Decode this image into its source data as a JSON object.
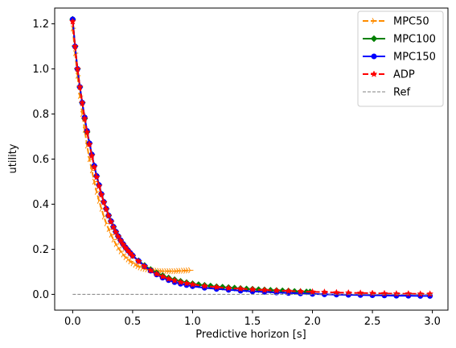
{
  "chart_data": {
    "type": "line",
    "title": "",
    "xlabel": "Predictive horizon [s]",
    "ylabel": "utility",
    "xlim": [
      -0.15,
      3.13
    ],
    "ylim": [
      -0.07,
      1.27
    ],
    "xticks": [
      0.0,
      0.5,
      1.0,
      1.5,
      2.0,
      2.5,
      3.0
    ],
    "xtick_labels": [
      "0.0",
      "0.5",
      "1.0",
      "1.5",
      "2.0",
      "2.5",
      "3.0"
    ],
    "yticks": [
      0.0,
      0.2,
      0.4,
      0.6,
      0.8,
      1.0,
      1.2
    ],
    "ytick_labels": [
      "0.0",
      "0.2",
      "0.4",
      "0.6",
      "0.8",
      "1.0",
      "1.2"
    ],
    "grid": false,
    "legend": "top-right",
    "series": [
      {
        "name": "MPC50",
        "color": "#ff8c00",
        "style": "dashed",
        "marker": "tri-right",
        "x": [
          0.0,
          0.02,
          0.04,
          0.06,
          0.08,
          0.1,
          0.12,
          0.14,
          0.16,
          0.18,
          0.2,
          0.22,
          0.24,
          0.26,
          0.28,
          0.3,
          0.32,
          0.34,
          0.36,
          0.38,
          0.4,
          0.42,
          0.44,
          0.46,
          0.48,
          0.5,
          0.52,
          0.54,
          0.56,
          0.58,
          0.6,
          0.62,
          0.64,
          0.66,
          0.68,
          0.7,
          0.72,
          0.74,
          0.76,
          0.78,
          0.8,
          0.82,
          0.84,
          0.86,
          0.88,
          0.9,
          0.92,
          0.94,
          0.96,
          0.98
        ],
        "y": [
          1.18,
          1.07,
          0.97,
          0.88,
          0.8,
          0.73,
          0.66,
          0.6,
          0.55,
          0.5,
          0.455,
          0.415,
          0.38,
          0.345,
          0.315,
          0.29,
          0.265,
          0.243,
          0.223,
          0.206,
          0.191,
          0.177,
          0.165,
          0.155,
          0.146,
          0.138,
          0.131,
          0.125,
          0.12,
          0.116,
          0.113,
          0.111,
          0.109,
          0.107,
          0.106,
          0.105,
          0.104,
          0.103,
          0.103,
          0.103,
          0.103,
          0.103,
          0.103,
          0.103,
          0.104,
          0.104,
          0.105,
          0.105,
          0.106,
          0.107
        ]
      },
      {
        "name": "MPC100",
        "color": "#008000",
        "style": "solid",
        "marker": "diamond",
        "x": [
          0.0,
          0.02,
          0.04,
          0.06,
          0.08,
          0.1,
          0.12,
          0.14,
          0.16,
          0.18,
          0.2,
          0.22,
          0.24,
          0.26,
          0.28,
          0.3,
          0.32,
          0.34,
          0.36,
          0.38,
          0.4,
          0.42,
          0.44,
          0.46,
          0.48,
          0.5,
          0.55,
          0.6,
          0.65,
          0.7,
          0.75,
          0.8,
          0.85,
          0.9,
          0.95,
          1.0,
          1.05,
          1.1,
          1.15,
          1.2,
          1.25,
          1.3,
          1.35,
          1.4,
          1.45,
          1.5,
          1.55,
          1.6,
          1.65,
          1.7,
          1.75,
          1.8,
          1.85,
          1.9,
          1.95,
          1.98
        ],
        "y": [
          1.22,
          1.1,
          1.0,
          0.92,
          0.85,
          0.78,
          0.72,
          0.67,
          0.62,
          0.57,
          0.525,
          0.485,
          0.445,
          0.41,
          0.38,
          0.35,
          0.325,
          0.3,
          0.278,
          0.258,
          0.24,
          0.224,
          0.209,
          0.196,
          0.184,
          0.172,
          0.149,
          0.128,
          0.11,
          0.095,
          0.083,
          0.073,
          0.065,
          0.058,
          0.052,
          0.047,
          0.043,
          0.04,
          0.037,
          0.034,
          0.032,
          0.03,
          0.028,
          0.026,
          0.024,
          0.023,
          0.021,
          0.02,
          0.018,
          0.017,
          0.016,
          0.015,
          0.013,
          0.012,
          0.011,
          0.011
        ]
      },
      {
        "name": "MPC150",
        "color": "#0000ff",
        "style": "solid",
        "marker": "circle",
        "x": [
          0.0,
          0.02,
          0.04,
          0.06,
          0.08,
          0.1,
          0.12,
          0.14,
          0.16,
          0.18,
          0.2,
          0.22,
          0.24,
          0.26,
          0.28,
          0.3,
          0.32,
          0.34,
          0.36,
          0.38,
          0.4,
          0.42,
          0.44,
          0.46,
          0.48,
          0.5,
          0.55,
          0.6,
          0.65,
          0.7,
          0.75,
          0.8,
          0.85,
          0.9,
          0.95,
          1.0,
          1.1,
          1.2,
          1.3,
          1.4,
          1.5,
          1.6,
          1.7,
          1.8,
          1.9,
          2.0,
          2.1,
          2.2,
          2.3,
          2.4,
          2.5,
          2.6,
          2.7,
          2.8,
          2.9,
          2.98
        ],
        "y": [
          1.22,
          1.1,
          1.0,
          0.92,
          0.85,
          0.785,
          0.725,
          0.67,
          0.62,
          0.57,
          0.525,
          0.485,
          0.445,
          0.41,
          0.38,
          0.35,
          0.325,
          0.3,
          0.278,
          0.258,
          0.24,
          0.224,
          0.209,
          0.196,
          0.184,
          0.172,
          0.148,
          0.125,
          0.105,
          0.088,
          0.074,
          0.063,
          0.054,
          0.047,
          0.041,
          0.036,
          0.029,
          0.024,
          0.02,
          0.016,
          0.013,
          0.011,
          0.008,
          0.006,
          0.004,
          0.002,
          0.0,
          -0.001,
          -0.002,
          -0.003,
          -0.004,
          -0.005,
          -0.006,
          -0.006,
          -0.007,
          -0.007
        ]
      },
      {
        "name": "ADP",
        "color": "#ff0000",
        "style": "dashed",
        "marker": "star",
        "x": [
          0.0,
          0.02,
          0.04,
          0.06,
          0.08,
          0.1,
          0.12,
          0.14,
          0.16,
          0.18,
          0.2,
          0.22,
          0.24,
          0.26,
          0.28,
          0.3,
          0.32,
          0.34,
          0.36,
          0.38,
          0.4,
          0.42,
          0.44,
          0.46,
          0.48,
          0.5,
          0.55,
          0.6,
          0.65,
          0.7,
          0.75,
          0.8,
          0.85,
          0.9,
          0.95,
          1.0,
          1.1,
          1.2,
          1.3,
          1.4,
          1.5,
          1.6,
          1.7,
          1.8,
          1.9,
          2.0,
          2.1,
          2.2,
          2.3,
          2.4,
          2.5,
          2.6,
          2.7,
          2.8,
          2.9,
          2.98
        ],
        "y": [
          1.21,
          1.1,
          1.0,
          0.92,
          0.85,
          0.78,
          0.72,
          0.665,
          0.615,
          0.565,
          0.52,
          0.48,
          0.442,
          0.408,
          0.377,
          0.348,
          0.322,
          0.298,
          0.276,
          0.256,
          0.238,
          0.222,
          0.207,
          0.194,
          0.182,
          0.17,
          0.146,
          0.124,
          0.106,
          0.091,
          0.079,
          0.069,
          0.061,
          0.054,
          0.049,
          0.044,
          0.037,
          0.032,
          0.028,
          0.025,
          0.022,
          0.019,
          0.017,
          0.015,
          0.013,
          0.011,
          0.01,
          0.008,
          0.007,
          0.006,
          0.005,
          0.004,
          0.003,
          0.003,
          0.002,
          0.002
        ]
      },
      {
        "name": "Ref",
        "color": "#808080",
        "style": "dashed-thin",
        "marker": "none",
        "x": [
          0.0,
          3.0
        ],
        "y": [
          0.0,
          0.0
        ]
      }
    ]
  }
}
